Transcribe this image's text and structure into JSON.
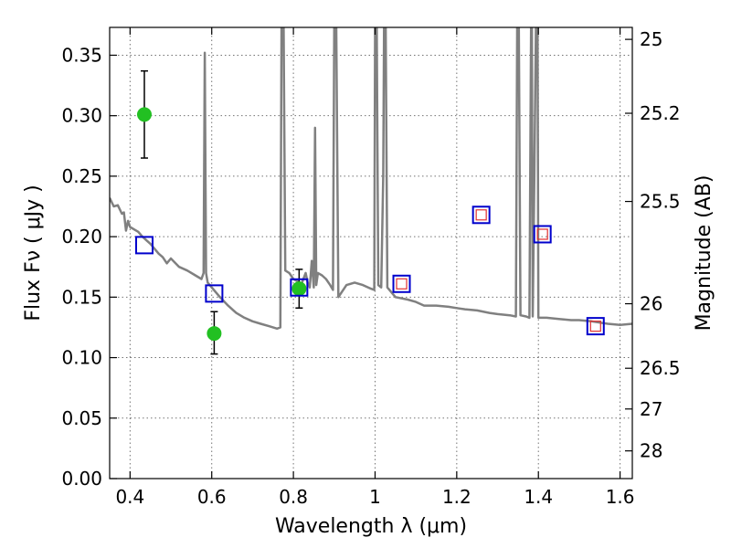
{
  "chart_data": {
    "type": "scatter",
    "title": "",
    "xlabel": "Wavelength  λ (μm)",
    "ylabel": "Flux  Fν  ( μJy )",
    "ylabel_right": "Magnitude (AB)",
    "xlim": [
      0.35,
      1.63
    ],
    "ylim": [
      0.0,
      0.373
    ],
    "grid": true,
    "x_ticks": [
      {
        "value": 0.4,
        "label": "0.4"
      },
      {
        "value": 0.6,
        "label": "0.6"
      },
      {
        "value": 0.8,
        "label": "0.8"
      },
      {
        "value": 1.0,
        "label": "1"
      },
      {
        "value": 1.2,
        "label": "1.2"
      },
      {
        "value": 1.4,
        "label": "1.4"
      },
      {
        "value": 1.6,
        "label": "1.6"
      }
    ],
    "y_ticks": [
      {
        "value": 0.0,
        "label": "0.00"
      },
      {
        "value": 0.05,
        "label": "0.05"
      },
      {
        "value": 0.1,
        "label": "0.10"
      },
      {
        "value": 0.15,
        "label": "0.15"
      },
      {
        "value": 0.2,
        "label": "0.20"
      },
      {
        "value": 0.25,
        "label": "0.25"
      },
      {
        "value": 0.3,
        "label": "0.30"
      },
      {
        "value": 0.35,
        "label": "0.35"
      }
    ],
    "right_ticks": [
      {
        "value": 25,
        "label": "25"
      },
      {
        "value": 25.2,
        "label": "25.2"
      },
      {
        "value": 25.5,
        "label": "25.5"
      },
      {
        "value": 26,
        "label": "26"
      },
      {
        "value": 26.5,
        "label": "26.5"
      },
      {
        "value": 27,
        "label": "27"
      },
      {
        "value": 28,
        "label": "28"
      }
    ],
    "series": [
      {
        "kind": "line",
        "color": "#808080",
        "points": [
          [
            0.35,
            0.232
          ],
          [
            0.36,
            0.225
          ],
          [
            0.37,
            0.226
          ],
          [
            0.38,
            0.219
          ],
          [
            0.385,
            0.22
          ],
          [
            0.39,
            0.205
          ],
          [
            0.395,
            0.213
          ],
          [
            0.4,
            0.208
          ],
          [
            0.41,
            0.206
          ],
          [
            0.42,
            0.204
          ],
          [
            0.43,
            0.2
          ],
          [
            0.44,
            0.197
          ],
          [
            0.45,
            0.194
          ],
          [
            0.46,
            0.19
          ],
          [
            0.47,
            0.186
          ],
          [
            0.48,
            0.183
          ],
          [
            0.49,
            0.178
          ],
          [
            0.5,
            0.182
          ],
          [
            0.52,
            0.175
          ],
          [
            0.54,
            0.172
          ],
          [
            0.56,
            0.168
          ],
          [
            0.575,
            0.165
          ],
          [
            0.58,
            0.17
          ],
          [
            0.583,
            0.352
          ],
          [
            0.586,
            0.17
          ],
          [
            0.59,
            0.162
          ],
          [
            0.6,
            0.158
          ],
          [
            0.62,
            0.15
          ],
          [
            0.64,
            0.143
          ],
          [
            0.66,
            0.137
          ],
          [
            0.68,
            0.133
          ],
          [
            0.7,
            0.13
          ],
          [
            0.72,
            0.128
          ],
          [
            0.74,
            0.126
          ],
          [
            0.76,
            0.124
          ],
          [
            0.768,
            0.125
          ],
          [
            0.771,
            0.373
          ],
          [
            0.776,
            0.373
          ],
          [
            0.78,
            0.172
          ],
          [
            0.79,
            0.17
          ],
          [
            0.8,
            0.165
          ],
          [
            0.81,
            0.163
          ],
          [
            0.82,
            0.161
          ],
          [
            0.83,
            0.17
          ],
          [
            0.835,
            0.162
          ],
          [
            0.84,
            0.158
          ],
          [
            0.845,
            0.18
          ],
          [
            0.85,
            0.158
          ],
          [
            0.853,
            0.29
          ],
          [
            0.856,
            0.16
          ],
          [
            0.86,
            0.17
          ],
          [
            0.87,
            0.168
          ],
          [
            0.88,
            0.165
          ],
          [
            0.89,
            0.16
          ],
          [
            0.897,
            0.156
          ],
          [
            0.9,
            0.373
          ],
          [
            0.905,
            0.373
          ],
          [
            0.91,
            0.15
          ],
          [
            0.93,
            0.16
          ],
          [
            0.95,
            0.162
          ],
          [
            0.97,
            0.16
          ],
          [
            0.99,
            0.157
          ],
          [
            0.998,
            0.156
          ],
          [
            1.0,
            0.373
          ],
          [
            1.004,
            0.373
          ],
          [
            1.008,
            0.16
          ],
          [
            1.015,
            0.158
          ],
          [
            1.02,
            0.25
          ],
          [
            1.022,
            0.373
          ],
          [
            1.026,
            0.373
          ],
          [
            1.03,
            0.158
          ],
          [
            1.05,
            0.15
          ],
          [
            1.08,
            0.148
          ],
          [
            1.1,
            0.146
          ],
          [
            1.12,
            0.143
          ],
          [
            1.15,
            0.143
          ],
          [
            1.18,
            0.142
          ],
          [
            1.2,
            0.141
          ],
          [
            1.22,
            0.14
          ],
          [
            1.25,
            0.139
          ],
          [
            1.28,
            0.137
          ],
          [
            1.3,
            0.136
          ],
          [
            1.33,
            0.135
          ],
          [
            1.345,
            0.134
          ],
          [
            1.348,
            0.373
          ],
          [
            1.352,
            0.373
          ],
          [
            1.356,
            0.135
          ],
          [
            1.37,
            0.134
          ],
          [
            1.378,
            0.133
          ],
          [
            1.382,
            0.373
          ],
          [
            1.384,
            0.373
          ],
          [
            1.386,
            0.134
          ],
          [
            1.39,
            0.25
          ],
          [
            1.394,
            0.373
          ],
          [
            1.398,
            0.373
          ],
          [
            1.4,
            0.133
          ],
          [
            1.42,
            0.133
          ],
          [
            1.45,
            0.132
          ],
          [
            1.48,
            0.131
          ],
          [
            1.5,
            0.131
          ],
          [
            1.53,
            0.13
          ],
          [
            1.55,
            0.129
          ],
          [
            1.57,
            0.128
          ],
          [
            1.6,
            0.127
          ],
          [
            1.63,
            0.128
          ]
        ]
      },
      {
        "kind": "errorbar",
        "color": "#22c022",
        "points": [
          {
            "x": 0.435,
            "y": 0.301,
            "yerr_low": 0.265,
            "yerr_high": 0.337
          },
          {
            "x": 0.606,
            "y": 0.12,
            "yerr_low": 0.103,
            "yerr_high": 0.138
          },
          {
            "x": 0.814,
            "y": 0.157,
            "yerr_low": 0.141,
            "yerr_high": 0.173
          }
        ]
      },
      {
        "kind": "model-box",
        "color": "#0000cc",
        "points": [
          {
            "x": 0.435,
            "y": 0.193
          },
          {
            "x": 0.606,
            "y": 0.153
          },
          {
            "x": 0.814,
            "y": 0.158
          },
          {
            "x": 1.065,
            "y": 0.161
          },
          {
            "x": 1.26,
            "y": 0.218
          },
          {
            "x": 1.41,
            "y": 0.202
          },
          {
            "x": 1.54,
            "y": 0.126
          }
        ]
      },
      {
        "kind": "observed-box",
        "color": "#e03030",
        "points": [
          {
            "x": 1.065,
            "y": 0.161
          },
          {
            "x": 1.26,
            "y": 0.218
          },
          {
            "x": 1.41,
            "y": 0.202
          },
          {
            "x": 1.54,
            "y": 0.126
          }
        ]
      }
    ]
  }
}
